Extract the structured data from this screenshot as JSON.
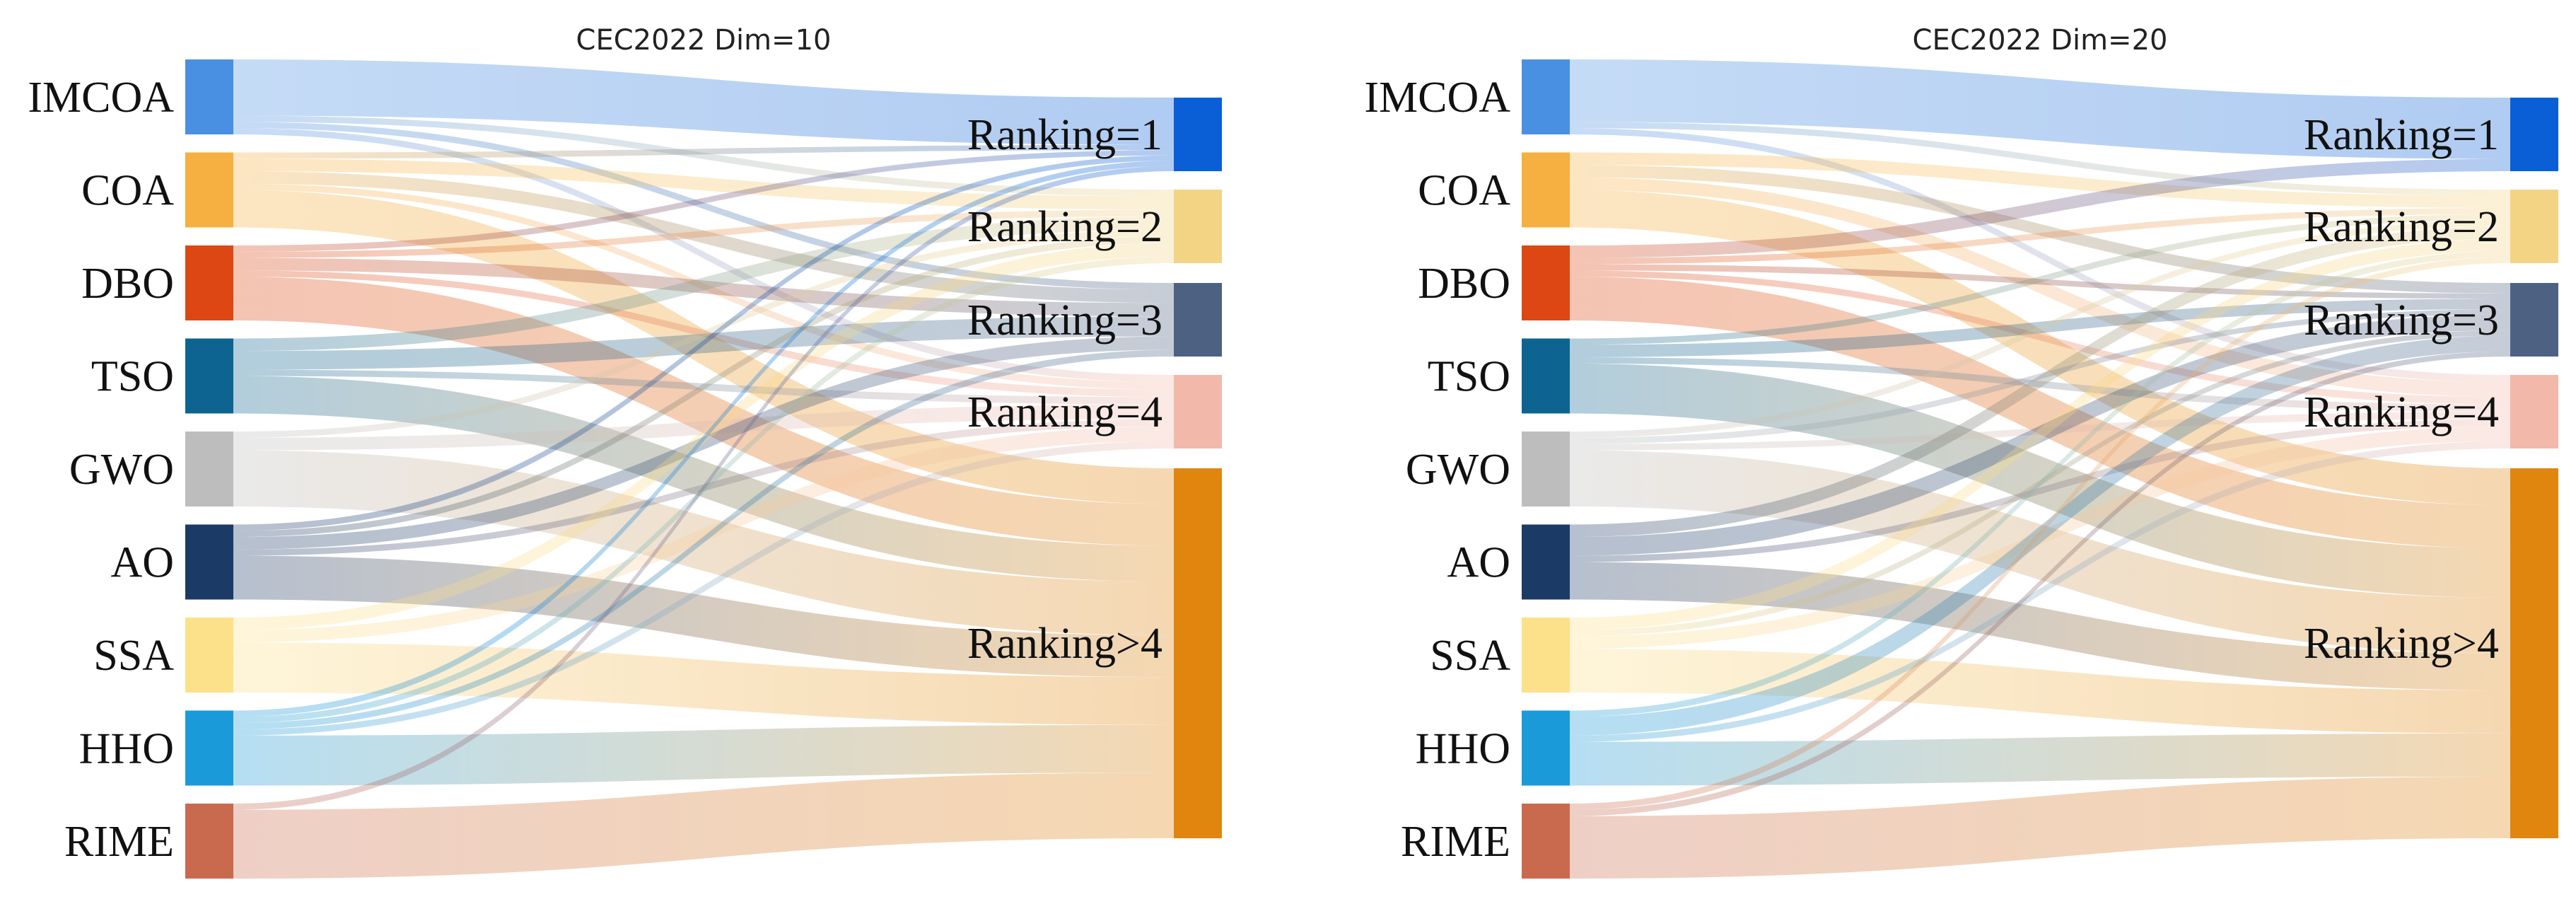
{
  "chart_data": [
    {
      "type": "sankey",
      "title": "CEC2022 Dim=10",
      "sources": [
        {
          "name": "IMCOA",
          "color": "#4a90e2"
        },
        {
          "name": "COA",
          "color": "#f5b041"
        },
        {
          "name": "DBO",
          "color": "#dc4714"
        },
        {
          "name": "TSO",
          "color": "#0e6490"
        },
        {
          "name": "GWO",
          "color": "#bdbdbd"
        },
        {
          "name": "AO",
          "color": "#1c3a66"
        },
        {
          "name": "SSA",
          "color": "#fde08a"
        },
        {
          "name": "HHO",
          "color": "#1a9ad9"
        },
        {
          "name": "RIME",
          "color": "#c96a4e"
        }
      ],
      "targets": [
        {
          "name": "Ranking=1",
          "color": "#0a5fd6"
        },
        {
          "name": "Ranking=2",
          "color": "#f3d484"
        },
        {
          "name": "Ranking=3",
          "color": "#4d6282"
        },
        {
          "name": "Ranking=4",
          "color": "#f2b9aa"
        },
        {
          "name": "Ranking>4",
          "color": "#e0860f"
        }
      ],
      "links": [
        [
          9,
          1,
          1,
          1,
          0
        ],
        [
          1,
          2,
          2,
          1,
          6
        ],
        [
          1,
          1,
          2,
          1,
          7
        ],
        [
          0,
          2,
          3,
          1,
          6
        ],
        [
          0,
          1,
          0,
          2,
          9
        ],
        [
          1,
          1,
          2,
          1,
          7
        ],
        [
          0,
          2,
          0,
          2,
          8
        ],
        [
          1,
          1,
          1,
          1,
          8
        ],
        [
          1,
          0,
          0,
          0,
          11
        ]
      ]
    },
    {
      "type": "sankey",
      "title": "CEC2022 Dim=20",
      "sources": [
        {
          "name": "IMCOA",
          "color": "#4a90e2"
        },
        {
          "name": "COA",
          "color": "#f5b041"
        },
        {
          "name": "DBO",
          "color": "#dc4714"
        },
        {
          "name": "TSO",
          "color": "#0e6490"
        },
        {
          "name": "GWO",
          "color": "#bdbdbd"
        },
        {
          "name": "AO",
          "color": "#1c3a66"
        },
        {
          "name": "SSA",
          "color": "#fde08a"
        },
        {
          "name": "HHO",
          "color": "#1a9ad9"
        },
        {
          "name": "RIME",
          "color": "#c96a4e"
        }
      ],
      "targets": [
        {
          "name": "Ranking=1",
          "color": "#0a5fd6"
        },
        {
          "name": "Ranking=2",
          "color": "#f3d484"
        },
        {
          "name": "Ranking=3",
          "color": "#4d6282"
        },
        {
          "name": "Ranking=4",
          "color": "#f2b9aa"
        },
        {
          "name": "Ranking>4",
          "color": "#e0860f"
        }
      ],
      "links": [
        [
          10,
          1,
          0,
          1,
          0
        ],
        [
          0,
          2,
          2,
          2,
          6
        ],
        [
          2,
          1,
          1,
          1,
          7
        ],
        [
          0,
          1,
          2,
          1,
          8
        ],
        [
          0,
          1,
          1,
          1,
          9
        ],
        [
          0,
          2,
          3,
          1,
          6
        ],
        [
          0,
          2,
          1,
          2,
          7
        ],
        [
          0,
          1,
          3,
          1,
          7
        ],
        [
          0,
          1,
          1,
          0,
          10
        ]
      ]
    }
  ]
}
